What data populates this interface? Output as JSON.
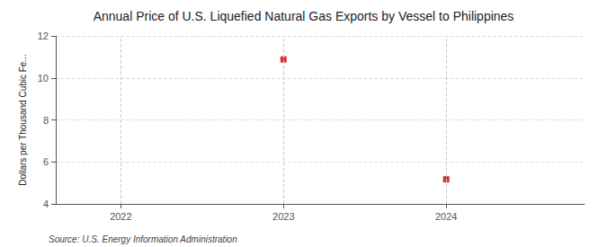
{
  "chart_data": {
    "type": "scatter",
    "title": "Annual Price of U.S. Liquefied Natural Gas Exports by Vessel to Philippines",
    "ylabel": "Dollars per Thousand Cubic Fe...",
    "source": "Source: U.S. Energy Information Administration",
    "x": [
      2023,
      2024
    ],
    "values": [
      10.88,
      5.17
    ],
    "color": "#cc0000",
    "marker": "square",
    "xlim": [
      2021.6,
      2024.85
    ],
    "xticks": [
      2022,
      2023,
      2024
    ],
    "ylim": [
      4,
      12
    ],
    "yticks": [
      4,
      6,
      8,
      10,
      12
    ],
    "grid": true
  }
}
